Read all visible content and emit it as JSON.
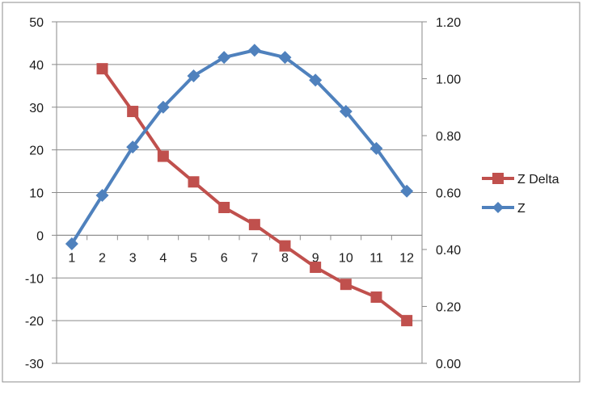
{
  "chart_data": {
    "type": "line",
    "categories": [
      "1",
      "2",
      "3",
      "4",
      "5",
      "6",
      "7",
      "8",
      "9",
      "10",
      "11",
      "12"
    ],
    "y_left": {
      "ylim": [
        -30,
        50
      ],
      "ticks": [
        "-30",
        "-20",
        "-10",
        "0",
        "10",
        "20",
        "30",
        "40",
        "50"
      ]
    },
    "y_right": {
      "ylim": [
        0,
        1.2
      ],
      "ticks": [
        "0.00",
        "0.20",
        "0.40",
        "0.60",
        "0.80",
        "1.00",
        "1.20"
      ]
    },
    "grid": true,
    "legend_position": "right",
    "series": [
      {
        "name": "Z Delta",
        "axis": "left",
        "color": "#c0504d",
        "marker": "square",
        "values": [
          null,
          39,
          29,
          18.5,
          12.5,
          6.5,
          2.5,
          -2.5,
          -7.5,
          -11.5,
          -14.5,
          -20
        ]
      },
      {
        "name": "Z",
        "axis": "right",
        "color": "#4f81bd",
        "marker": "diamond",
        "values": [
          0.42,
          0.59,
          0.76,
          0.9,
          1.01,
          1.075,
          1.1,
          1.075,
          0.995,
          0.885,
          0.755,
          0.605
        ]
      }
    ]
  }
}
